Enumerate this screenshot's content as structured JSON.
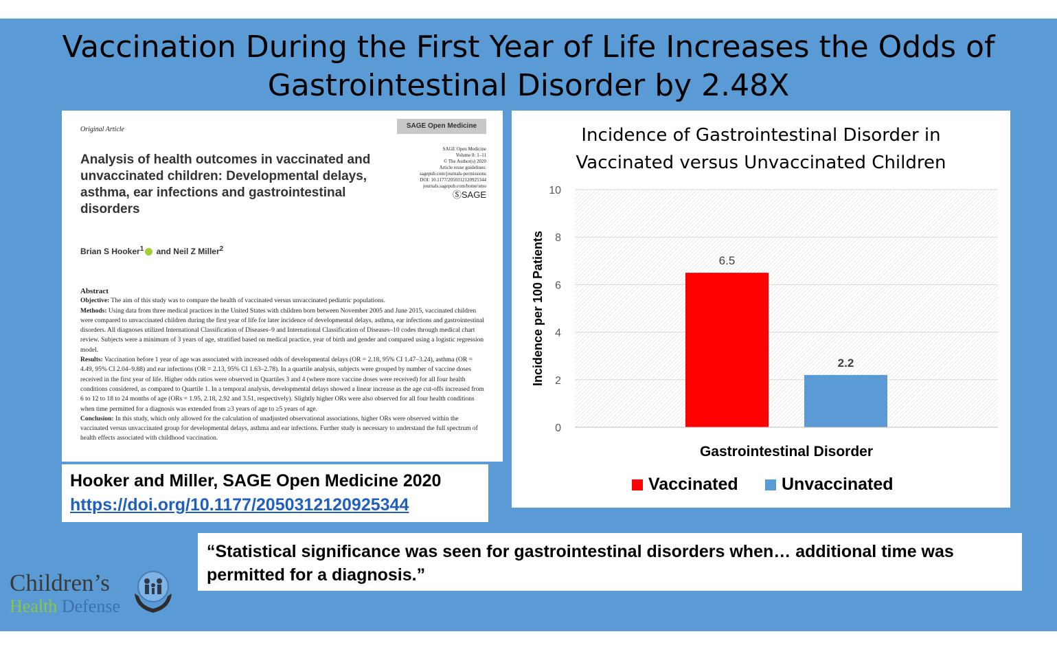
{
  "slide": {
    "title_lines": [
      "Vaccination During the First Year of Life Increases the Odds of",
      "Gastrointestinal Disorder by 2.48X"
    ]
  },
  "paper": {
    "article_type": "Original Article",
    "journal": "SAGE Open Medicine",
    "meta": [
      "SAGE Open Medicine",
      "Volume 8: 1–11",
      "© The Author(s) 2020",
      "Article reuse guidelines:",
      "sagepub.com/journals-permissions",
      "DOI: 10.1177/2050312120925344",
      "journals.sagepub.com/home/smo"
    ],
    "publisher": "SAGE",
    "title": "Analysis of health outcomes in vaccinated and unvaccinated children: Developmental delays, asthma, ear infections and gastrointestinal disorders",
    "authors": {
      "first": "Brian S Hooker",
      "first_sup": "1",
      "connector": "and",
      "second": "Neil Z Miller",
      "second_sup": "2"
    },
    "abstract_heading": "Abstract",
    "abstract": [
      {
        "label": "Objective:",
        "text": "The aim of this study was to compare the health of vaccinated versus unvaccinated pediatric populations."
      },
      {
        "label": "Methods:",
        "text": "Using data from three medical practices in the United States with children born between November 2005 and June 2015, vaccinated children were compared to unvaccinated children during the first year of life for later incidence of developmental delays, asthma, ear infections and gastrointestinal disorders. All diagnoses utilized International Classification of Diseases–9 and International Classification of Diseases–10 codes through medical chart review. Subjects were a minimum of 3 years of age, stratified based on medical practice, year of birth and gender and compared using a logistic regression model."
      },
      {
        "label": "Results:",
        "text": "Vaccination before 1 year of age was associated with increased odds of developmental delays (OR = 2.18, 95% CI 1.47–3.24), asthma (OR = 4.49, 95% CI 2.04–9.88) and ear infections (OR = 2.13, 95% CI 1.63–2.78). In a quartile analysis, subjects were grouped by number of vaccine doses received in the first year of life. Higher odds ratios were observed in Quartiles 3 and 4 (where more vaccine doses were received) for all four health conditions considered, as compared to Quartile 1. In a temporal analysis, developmental delays showed a linear increase as the age cut-offs increased from 6 to 12 to 18 to 24 months of age (ORs = 1.95, 2.18, 2.92 and 3.51, respectively). Slightly higher ORs were also observed for all four health conditions when time permitted for a diagnosis was extended from ≥3 years of age to ≥5 years of age."
      },
      {
        "label": "Conclusion:",
        "text": "In this study, which only allowed for the calculation of unadjusted observational associations, higher ORs were observed within the vaccinated versus unvaccinated group for developmental delays, asthma and ear infections. Further study is necessary to understand the full spectrum of health effects associated with childhood vaccination."
      }
    ]
  },
  "citation": {
    "text": "Hooker and Miller, SAGE Open Medicine 2020",
    "link": "https://doi.org/10.1177/2050312120925344"
  },
  "chart_data": {
    "type": "bar",
    "title_lines": [
      "Incidence of Gastrointestinal Disorder in",
      "Vaccinated versus Unvaccinated Children"
    ],
    "categories": [
      "Gastrointestinal Disorder"
    ],
    "series": [
      {
        "name": "Vaccinated",
        "values": [
          6.5
        ],
        "label": "6.5",
        "color": "#ff0000"
      },
      {
        "name": "Unvaccinated",
        "values": [
          2.2
        ],
        "label": "2.2",
        "color": "#5b9bd5"
      }
    ],
    "xlabel": "Gastrointestinal Disorder",
    "ylabel": "Incidence per 100 Patients",
    "ylim": [
      0,
      10
    ],
    "yticks": [
      "0",
      "2",
      "4",
      "6",
      "8",
      "10"
    ],
    "grid": true,
    "legend": "bottom"
  },
  "quote": {
    "text": "“Statistical significance was seen for gastrointestinal disorders when… additional time was permitted for a diagnosis.”"
  },
  "logo": {
    "line1": "Children’s",
    "line2a": "Health",
    "line2b": " Defense"
  }
}
